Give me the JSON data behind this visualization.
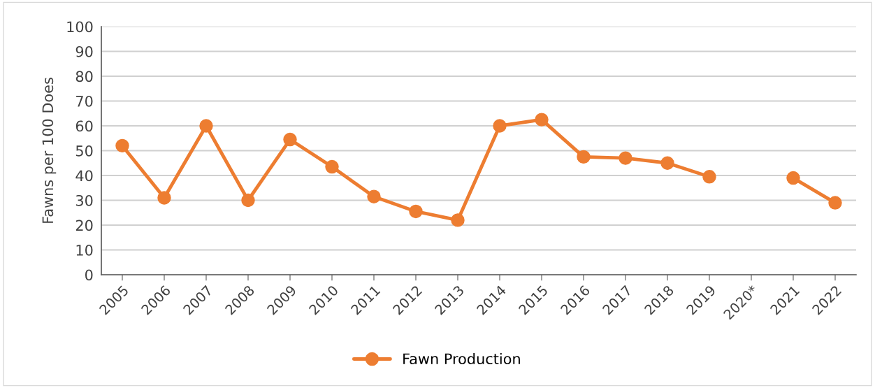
{
  "chart_data": {
    "type": "line",
    "ylabel": "Fawns per 100 Does",
    "categories": [
      "2005",
      "2006",
      "2007",
      "2008",
      "2009",
      "2010",
      "2011",
      "2012",
      "2013",
      "2014",
      "2015",
      "2016",
      "2017",
      "2018",
      "2019",
      "2020*",
      "2021",
      "2022"
    ],
    "series": [
      {
        "name": "Fawn Production",
        "color": "#ed7d31",
        "values": [
          52,
          31,
          60,
          30,
          54.5,
          43.5,
          31.5,
          25.5,
          22,
          60,
          62.5,
          47.5,
          47,
          45,
          39.5,
          null,
          39,
          29
        ]
      }
    ],
    "ylim": [
      0,
      100
    ],
    "yticks": [
      0,
      10,
      20,
      30,
      40,
      50,
      60,
      70,
      80,
      90,
      100
    ],
    "grid": "y",
    "legend": "bottom",
    "marker": "circle",
    "line_style": "solid"
  }
}
